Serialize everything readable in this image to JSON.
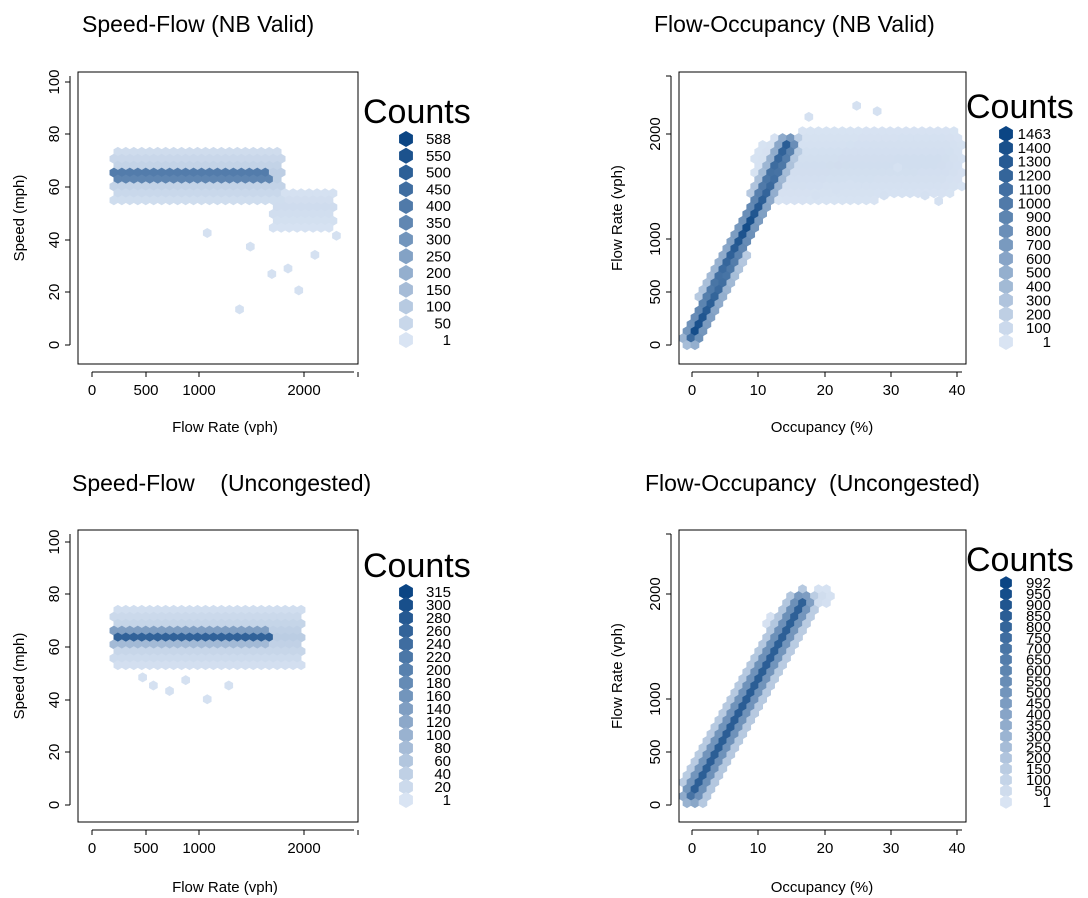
{
  "colors": {
    "low": "#d9e4f3",
    "high": "#0b4584",
    "axis": "#000000",
    "background": "#ffffff"
  },
  "legend_title": "Counts",
  "chart_data": [
    {
      "type": "hexbin",
      "title": "Speed-Flow (NB Valid)",
      "xlabel": "Flow Rate (vph)",
      "ylabel": "Speed (mph)",
      "xlim": [
        -100,
        2500
      ],
      "ylim": [
        -5,
        102
      ],
      "x_ticks": [
        "0",
        "500",
        "1000",
        "2000"
      ],
      "y_ticks": [
        "0",
        "20",
        "40",
        "60",
        "80",
        "100"
      ],
      "legend_labels": [
        "588",
        "550",
        "500",
        "450",
        "400",
        "350",
        "300",
        "250",
        "200",
        "150",
        "100",
        "50",
        "1"
      ],
      "count_range": [
        1,
        588
      ],
      "bands": [
        {
          "x": [
            200,
            1800
          ],
          "y": 64,
          "half_width": 11,
          "peak": 0.15
        },
        {
          "x": [
            200,
            1700
          ],
          "y": 64,
          "half_width": 3.5,
          "peak": 0.9
        },
        {
          "x": [
            1700,
            2300
          ],
          "y": 52,
          "half_width": 8,
          "peak": 0.05
        }
      ],
      "scatter_points": [
        [
          1850,
          30
        ],
        [
          1950,
          22
        ],
        [
          1400,
          15
        ],
        [
          1700,
          28
        ],
        [
          2100,
          35
        ],
        [
          2300,
          42
        ],
        [
          1100,
          43
        ],
        [
          1500,
          38
        ]
      ]
    },
    {
      "type": "hexbin",
      "title": "Flow-Occupancy (NB Valid)",
      "xlabel": "Occupancy (%)",
      "ylabel": "Flow Rate (vph)",
      "xlim": [
        -1,
        41
      ],
      "ylim": [
        -50,
        2550
      ],
      "x_ticks": [
        "0",
        "10",
        "20",
        "30",
        "40"
      ],
      "y_ticks": [
        "0",
        "500",
        "1000",
        "2000"
      ],
      "legend_labels": [
        "1463",
        "1400",
        "1300",
        "1200",
        "1100",
        "1000",
        "900",
        "800",
        "700",
        "600",
        "500",
        "400",
        "300",
        "200",
        "100",
        "1"
      ],
      "count_range": [
        1,
        1463
      ],
      "bands": [
        {
          "from": [
            1,
            200
          ],
          "to": [
            15,
            1900
          ],
          "half_width": 110,
          "peak": 0.95
        },
        {
          "from": [
            15,
            1700
          ],
          "to": [
            37,
            1750
          ],
          "half_width": 320,
          "peak": 0.04
        }
      ],
      "scatter_points": [
        [
          19,
          1450
        ],
        [
          24,
          1550
        ],
        [
          29,
          1450
        ],
        [
          35,
          1450
        ],
        [
          37,
          1400
        ],
        [
          22,
          1500
        ],
        [
          31,
          1700
        ],
        [
          18,
          2150
        ],
        [
          25,
          2250
        ],
        [
          28,
          2200
        ]
      ]
    },
    {
      "type": "hexbin",
      "title": "Speed-Flow    (Uncongested)",
      "xlabel": "Flow Rate (vph)",
      "ylabel": "Speed (mph)",
      "xlim": [
        -100,
        2500
      ],
      "ylim": [
        -5,
        102
      ],
      "x_ticks": [
        "0",
        "500",
        "1000",
        "2000"
      ],
      "y_ticks": [
        "0",
        "20",
        "40",
        "60",
        "80",
        "100"
      ],
      "legend_labels": [
        "315",
        "300",
        "280",
        "260",
        "240",
        "220",
        "200",
        "180",
        "160",
        "140",
        "120",
        "100",
        "80",
        "60",
        "40",
        "20",
        "1"
      ],
      "count_range": [
        1,
        315
      ],
      "bands": [
        {
          "x": [
            200,
            2000
          ],
          "y": 63,
          "half_width": 11,
          "peak": 0.15
        },
        {
          "x": [
            200,
            1700
          ],
          "y": 63,
          "half_width": 3.5,
          "peak": 0.9
        }
      ],
      "scatter_points": [
        [
          600,
          45
        ],
        [
          750,
          43
        ],
        [
          900,
          47
        ],
        [
          1100,
          40
        ],
        [
          500,
          48
        ],
        [
          1300,
          45
        ]
      ]
    },
    {
      "type": "hexbin",
      "title": "Flow-Occupancy  (Uncongested)",
      "xlabel": "Occupancy (%)",
      "ylabel": "Flow Rate (vph)",
      "xlim": [
        -1,
        41
      ],
      "ylim": [
        -50,
        2550
      ],
      "x_ticks": [
        "0",
        "10",
        "20",
        "30",
        "40"
      ],
      "y_ticks": [
        "0",
        "500",
        "1000",
        "2000"
      ],
      "legend_labels": [
        "992",
        "950",
        "900",
        "850",
        "800",
        "750",
        "700",
        "650",
        "600",
        "550",
        "500",
        "450",
        "400",
        "350",
        "300",
        "250",
        "200",
        "150",
        "100",
        "50",
        "1"
      ],
      "count_range": [
        1,
        992
      ],
      "bands": [
        {
          "from": [
            1,
            200
          ],
          "to": [
            17,
            1900
          ],
          "half_width": 130,
          "peak": 0.85
        },
        {
          "from": [
            13,
            1700
          ],
          "to": [
            20,
            1950
          ],
          "half_width": 90,
          "peak": 0.05
        }
      ],
      "scatter_points": []
    }
  ]
}
